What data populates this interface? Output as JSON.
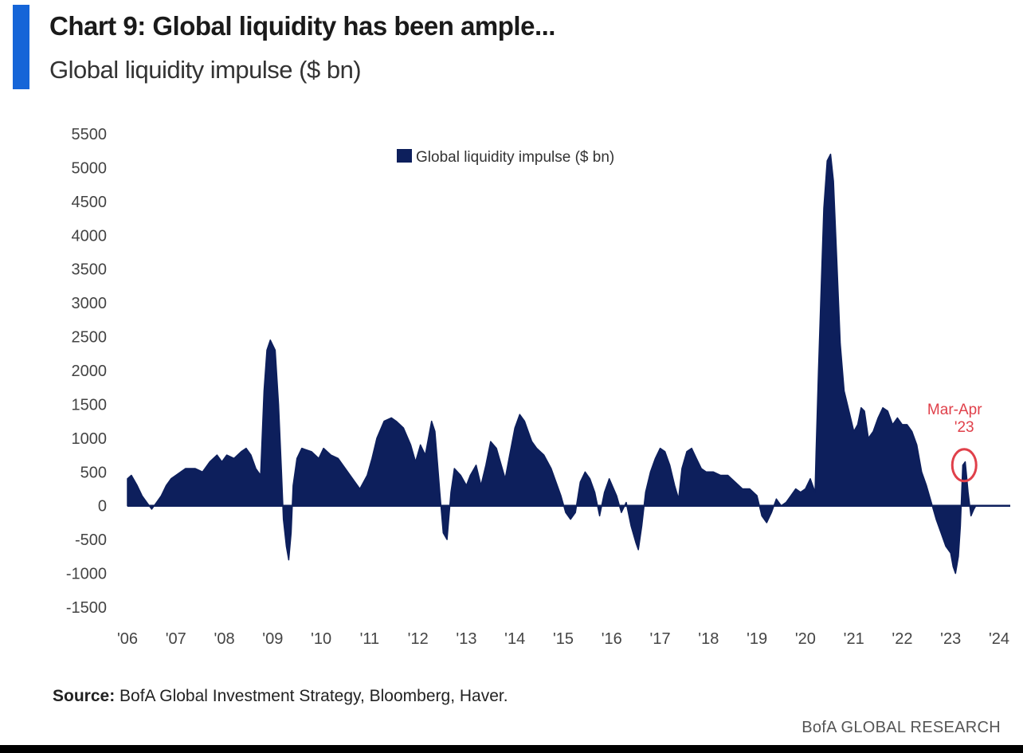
{
  "header": {
    "title": "Chart 9: Global liquidity has been ample...",
    "subtitle": "Global liquidity impulse ($ bn)"
  },
  "footer": {
    "source_label": "Source:",
    "source_text": "BofA Global Investment Strategy, Bloomberg, Haver.",
    "brand": "BofA GLOBAL RESEARCH"
  },
  "colors": {
    "accent": "#1565d8",
    "series": "#0d1f5c",
    "annotation": "#e0404a"
  },
  "chart_data": {
    "type": "area",
    "legend": {
      "label": "Global liquidity impulse ($ bn)",
      "position": "top-center"
    },
    "ylim": [
      -1500,
      5500
    ],
    "yticks": [
      5500,
      5000,
      4500,
      4000,
      3500,
      3000,
      2500,
      2000,
      1500,
      1000,
      500,
      0,
      -500,
      -1000,
      -1500
    ],
    "xlim": [
      2006,
      2024
    ],
    "xticks": [
      {
        "value": 2006,
        "label": "'06"
      },
      {
        "value": 2007,
        "label": "'07"
      },
      {
        "value": 2008,
        "label": "'08"
      },
      {
        "value": 2009,
        "label": "'09"
      },
      {
        "value": 2010,
        "label": "'10"
      },
      {
        "value": 2011,
        "label": "'11"
      },
      {
        "value": 2012,
        "label": "'12"
      },
      {
        "value": 2013,
        "label": "'13"
      },
      {
        "value": 2014,
        "label": "'14"
      },
      {
        "value": 2015,
        "label": "'15"
      },
      {
        "value": 2016,
        "label": "'16"
      },
      {
        "value": 2017,
        "label": "'17"
      },
      {
        "value": 2018,
        "label": "'18"
      },
      {
        "value": 2019,
        "label": "'19"
      },
      {
        "value": 2020,
        "label": "'20"
      },
      {
        "value": 2021,
        "label": "'21"
      },
      {
        "value": 2022,
        "label": "'22"
      },
      {
        "value": 2023,
        "label": "'23"
      },
      {
        "value": 2024,
        "label": "'24"
      }
    ],
    "grid": false,
    "series": [
      {
        "name": "Global liquidity impulse ($ bn)",
        "points": [
          [
            2006.0,
            400
          ],
          [
            2006.08,
            450
          ],
          [
            2006.2,
            300
          ],
          [
            2006.3,
            150
          ],
          [
            2006.4,
            50
          ],
          [
            2006.5,
            -50
          ],
          [
            2006.6,
            50
          ],
          [
            2006.7,
            150
          ],
          [
            2006.8,
            300
          ],
          [
            2006.9,
            400
          ],
          [
            2007.0,
            450
          ],
          [
            2007.2,
            550
          ],
          [
            2007.4,
            550
          ],
          [
            2007.55,
            500
          ],
          [
            2007.7,
            650
          ],
          [
            2007.85,
            750
          ],
          [
            2007.95,
            650
          ],
          [
            2008.05,
            750
          ],
          [
            2008.2,
            700
          ],
          [
            2008.35,
            800
          ],
          [
            2008.45,
            850
          ],
          [
            2008.55,
            750
          ],
          [
            2008.65,
            550
          ],
          [
            2008.75,
            450
          ],
          [
            2008.82,
            1700
          ],
          [
            2008.88,
            2300
          ],
          [
            2008.95,
            2450
          ],
          [
            2009.05,
            2300
          ],
          [
            2009.12,
            1500
          ],
          [
            2009.18,
            500
          ],
          [
            2009.22,
            -200
          ],
          [
            2009.28,
            -600
          ],
          [
            2009.33,
            -800
          ],
          [
            2009.38,
            -400
          ],
          [
            2009.42,
            300
          ],
          [
            2009.5,
            700
          ],
          [
            2009.6,
            850
          ],
          [
            2009.8,
            800
          ],
          [
            2009.95,
            700
          ],
          [
            2010.05,
            850
          ],
          [
            2010.2,
            750
          ],
          [
            2010.35,
            700
          ],
          [
            2010.5,
            550
          ],
          [
            2010.65,
            400
          ],
          [
            2010.8,
            250
          ],
          [
            2010.95,
            450
          ],
          [
            2011.05,
            700
          ],
          [
            2011.15,
            1000
          ],
          [
            2011.3,
            1250
          ],
          [
            2011.45,
            1300
          ],
          [
            2011.55,
            1250
          ],
          [
            2011.7,
            1150
          ],
          [
            2011.85,
            900
          ],
          [
            2011.95,
            650
          ],
          [
            2012.05,
            900
          ],
          [
            2012.15,
            750
          ],
          [
            2012.28,
            1250
          ],
          [
            2012.35,
            1100
          ],
          [
            2012.4,
            650
          ],
          [
            2012.45,
            200
          ],
          [
            2012.52,
            -400
          ],
          [
            2012.6,
            -500
          ],
          [
            2012.68,
            200
          ],
          [
            2012.75,
            550
          ],
          [
            2012.88,
            450
          ],
          [
            2013.0,
            300
          ],
          [
            2013.08,
            450
          ],
          [
            2013.2,
            600
          ],
          [
            2013.3,
            300
          ],
          [
            2013.4,
            600
          ],
          [
            2013.5,
            950
          ],
          [
            2013.62,
            850
          ],
          [
            2013.72,
            600
          ],
          [
            2013.8,
            400
          ],
          [
            2013.88,
            700
          ],
          [
            2014.0,
            1150
          ],
          [
            2014.1,
            1350
          ],
          [
            2014.2,
            1250
          ],
          [
            2014.35,
            950
          ],
          [
            2014.45,
            850
          ],
          [
            2014.6,
            750
          ],
          [
            2014.75,
            550
          ],
          [
            2014.85,
            350
          ],
          [
            2014.95,
            150
          ],
          [
            2015.05,
            -100
          ],
          [
            2015.15,
            -200
          ],
          [
            2015.25,
            -100
          ],
          [
            2015.35,
            350
          ],
          [
            2015.45,
            500
          ],
          [
            2015.55,
            400
          ],
          [
            2015.65,
            200
          ],
          [
            2015.75,
            -150
          ],
          [
            2015.85,
            200
          ],
          [
            2015.95,
            400
          ],
          [
            2016.1,
            150
          ],
          [
            2016.2,
            -100
          ],
          [
            2016.3,
            50
          ],
          [
            2016.4,
            -300
          ],
          [
            2016.5,
            -550
          ],
          [
            2016.55,
            -650
          ],
          [
            2016.62,
            -300
          ],
          [
            2016.7,
            200
          ],
          [
            2016.8,
            500
          ],
          [
            2016.9,
            700
          ],
          [
            2017.0,
            850
          ],
          [
            2017.1,
            800
          ],
          [
            2017.2,
            600
          ],
          [
            2017.3,
            300
          ],
          [
            2017.38,
            100
          ],
          [
            2017.45,
            550
          ],
          [
            2017.55,
            800
          ],
          [
            2017.65,
            850
          ],
          [
            2017.75,
            700
          ],
          [
            2017.85,
            550
          ],
          [
            2017.95,
            500
          ],
          [
            2018.1,
            500
          ],
          [
            2018.25,
            450
          ],
          [
            2018.4,
            450
          ],
          [
            2018.55,
            350
          ],
          [
            2018.7,
            250
          ],
          [
            2018.85,
            250
          ],
          [
            2019.0,
            150
          ],
          [
            2019.1,
            -150
          ],
          [
            2019.2,
            -250
          ],
          [
            2019.3,
            -100
          ],
          [
            2019.4,
            100
          ],
          [
            2019.5,
            0
          ],
          [
            2019.6,
            50
          ],
          [
            2019.7,
            150
          ],
          [
            2019.8,
            250
          ],
          [
            2019.9,
            200
          ],
          [
            2020.0,
            250
          ],
          [
            2020.1,
            400
          ],
          [
            2020.2,
            200
          ],
          [
            2020.22,
            800
          ],
          [
            2020.27,
            2000
          ],
          [
            2020.33,
            3300
          ],
          [
            2020.38,
            4400
          ],
          [
            2020.45,
            5100
          ],
          [
            2020.52,
            5200
          ],
          [
            2020.58,
            4800
          ],
          [
            2020.65,
            3600
          ],
          [
            2020.72,
            2400
          ],
          [
            2020.8,
            1700
          ],
          [
            2020.9,
            1400
          ],
          [
            2021.0,
            1100
          ],
          [
            2021.08,
            1200
          ],
          [
            2021.15,
            1450
          ],
          [
            2021.22,
            1400
          ],
          [
            2021.3,
            1000
          ],
          [
            2021.4,
            1100
          ],
          [
            2021.5,
            1300
          ],
          [
            2021.6,
            1450
          ],
          [
            2021.7,
            1400
          ],
          [
            2021.8,
            1200
          ],
          [
            2021.9,
            1300
          ],
          [
            2022.0,
            1200
          ],
          [
            2022.1,
            1200
          ],
          [
            2022.2,
            1100
          ],
          [
            2022.3,
            900
          ],
          [
            2022.4,
            500
          ],
          [
            2022.5,
            300
          ],
          [
            2022.6,
            50
          ],
          [
            2022.7,
            -200
          ],
          [
            2022.8,
            -400
          ],
          [
            2022.9,
            -600
          ],
          [
            2023.0,
            -700
          ],
          [
            2023.05,
            -900
          ],
          [
            2023.1,
            -1000
          ],
          [
            2023.16,
            -750
          ],
          [
            2023.2,
            -300
          ],
          [
            2023.25,
            600
          ],
          [
            2023.3,
            650
          ],
          [
            2023.36,
            200
          ],
          [
            2023.42,
            -150
          ],
          [
            2023.48,
            -50
          ],
          [
            2023.52,
            0
          ]
        ]
      }
    ],
    "annotations": [
      {
        "text_line1": "Mar-Apr",
        "text_line2": "'23",
        "x": 2023.28,
        "y": 600,
        "shape": "circle"
      }
    ]
  }
}
